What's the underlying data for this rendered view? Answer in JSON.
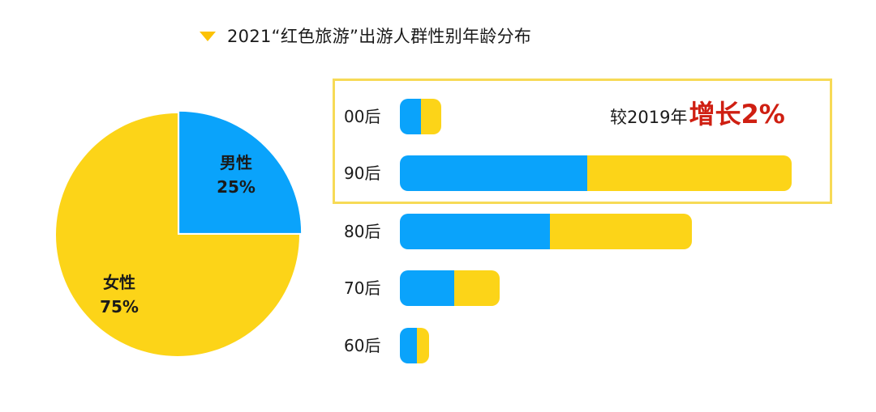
{
  "chart_data": [
    {
      "type": "pie",
      "title": "2021“红色旅游”出游人群性别年龄分布",
      "slices": [
        {
          "name": "男性",
          "value": 25,
          "label": "25%",
          "color": "#0aa3fb"
        },
        {
          "name": "女性",
          "value": 75,
          "label": "75%",
          "color": "#fcd418"
        }
      ]
    },
    {
      "type": "bar",
      "orientation": "horizontal",
      "stacked": true,
      "categories": [
        "00后",
        "90后",
        "80后",
        "70后",
        "60后"
      ],
      "max_total": 100,
      "series": [
        {
          "name": "男性",
          "color": "#0aa3fb",
          "values": [
            5,
            45,
            36,
            13,
            4
          ]
        },
        {
          "name": "女性",
          "color": "#fcd418",
          "values": [
            5,
            49,
            34,
            11,
            3
          ]
        }
      ],
      "annotation": {
        "text": "较2019年",
        "value": "增长2%",
        "target_category": "90后"
      }
    }
  ]
}
